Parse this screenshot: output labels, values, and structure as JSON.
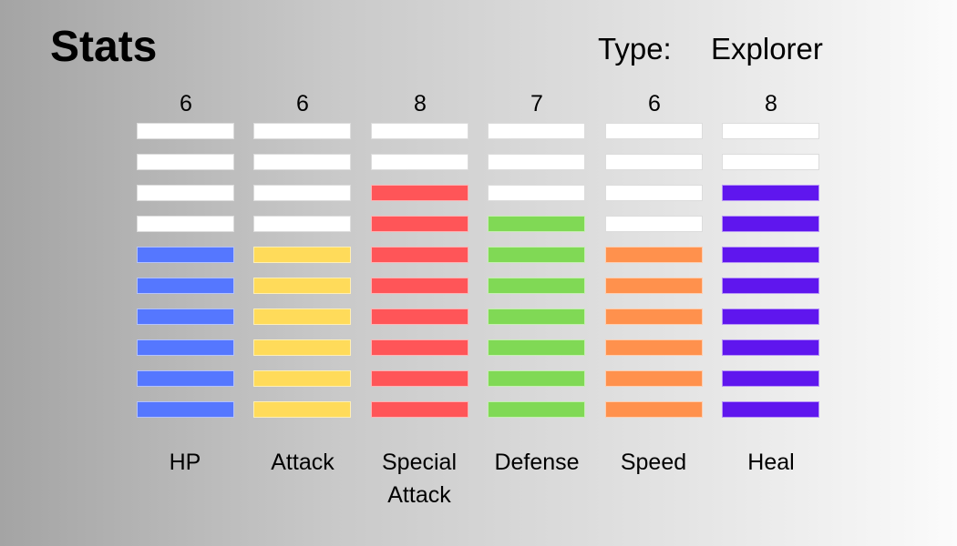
{
  "header": {
    "title": "Stats",
    "type_label": "Type:",
    "type_value": "Explorer"
  },
  "stats_meta": {
    "max_segments": 10,
    "empty_color": "#ffffff"
  },
  "stats": [
    {
      "label": "HP",
      "value": "6",
      "filled": 6,
      "color": "#5577ff"
    },
    {
      "label": "Attack",
      "value": "6",
      "filled": 6,
      "color": "#ffdb5a"
    },
    {
      "label": "Special Attack",
      "value": "8",
      "filled": 8,
      "color": "#ff5558"
    },
    {
      "label": "Defense",
      "value": "7",
      "filled": 7,
      "color": "#80d955"
    },
    {
      "label": "Speed",
      "value": "6",
      "filled": 6,
      "color": "#ff914d"
    },
    {
      "label": "Heal",
      "value": "8",
      "filled": 8,
      "color": "#5f16ee"
    }
  ]
}
